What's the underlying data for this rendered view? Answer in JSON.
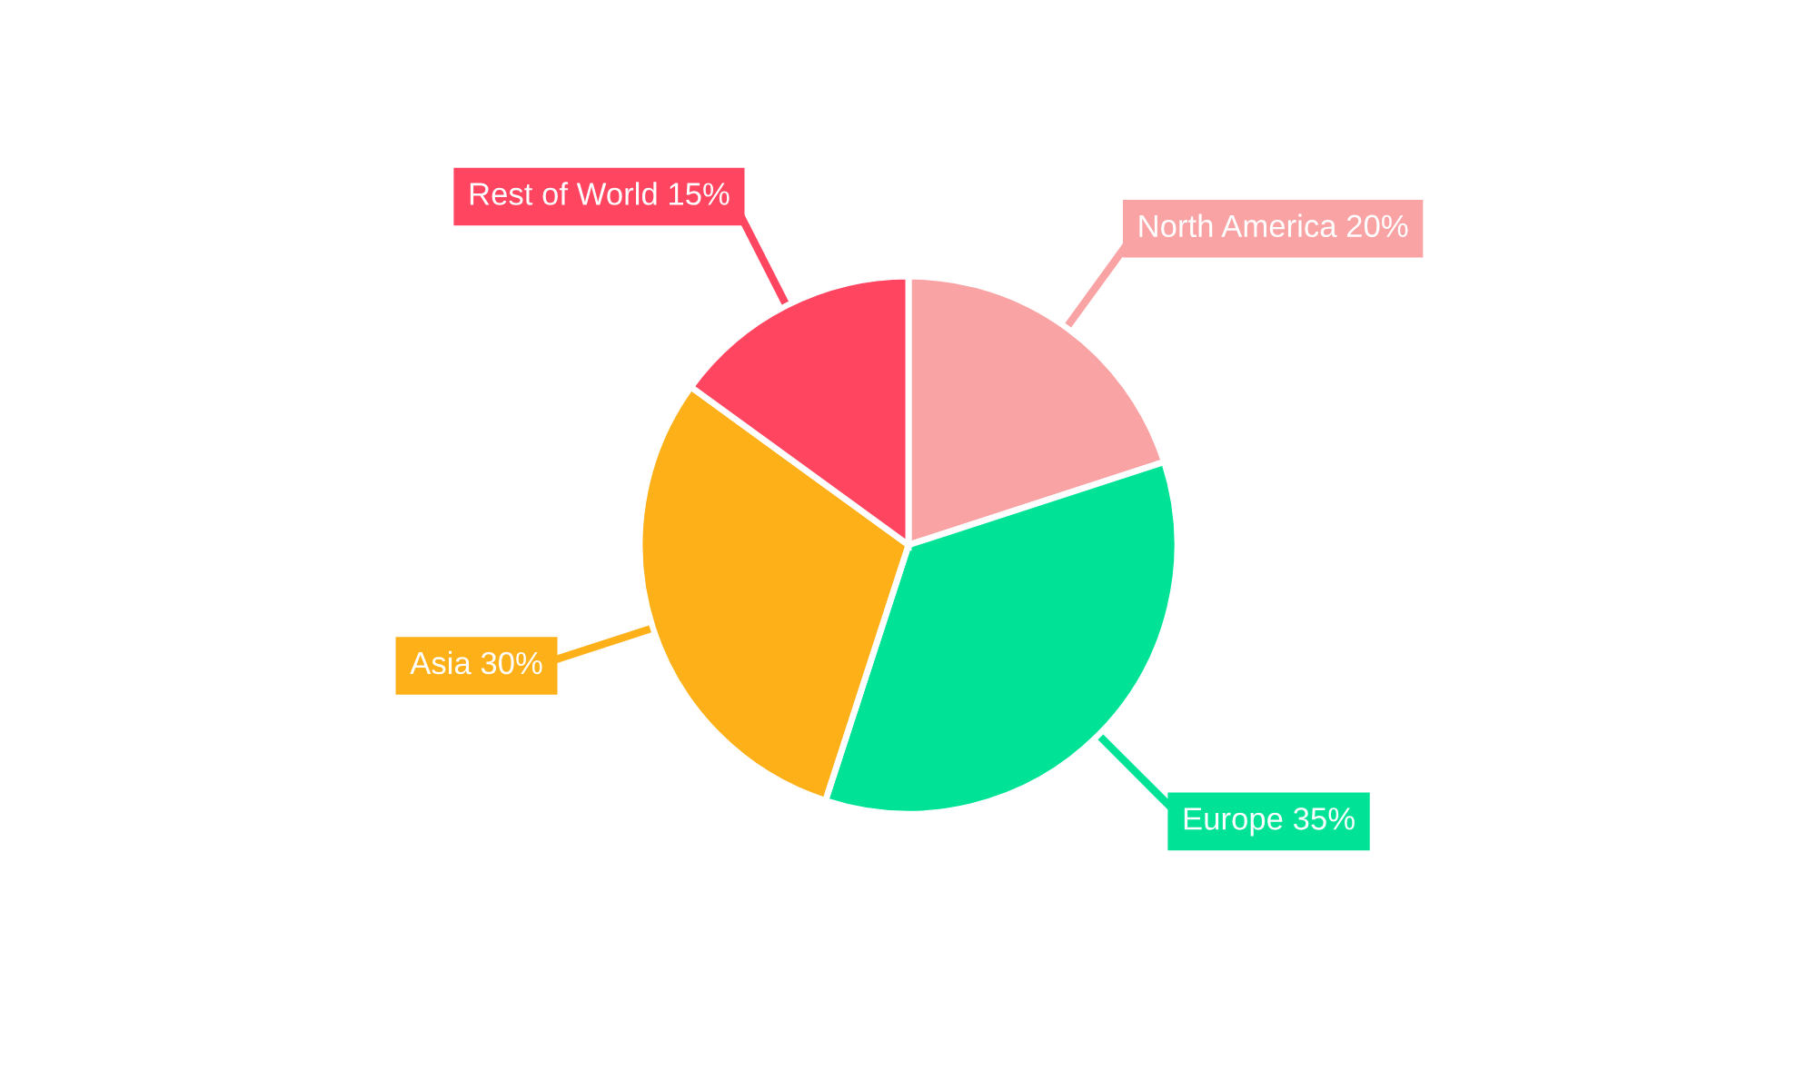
{
  "chart_data": {
    "type": "pie",
    "categories": [
      "North America",
      "Europe",
      "Asia",
      "Rest of World"
    ],
    "values": [
      20,
      35,
      30,
      15
    ],
    "value_labels": [
      "20%",
      "35%",
      "30%",
      "15%"
    ],
    "colors": [
      "#f9a3a4",
      "#00e396",
      "#feb019",
      "#ff4560"
    ],
    "legend": false
  }
}
